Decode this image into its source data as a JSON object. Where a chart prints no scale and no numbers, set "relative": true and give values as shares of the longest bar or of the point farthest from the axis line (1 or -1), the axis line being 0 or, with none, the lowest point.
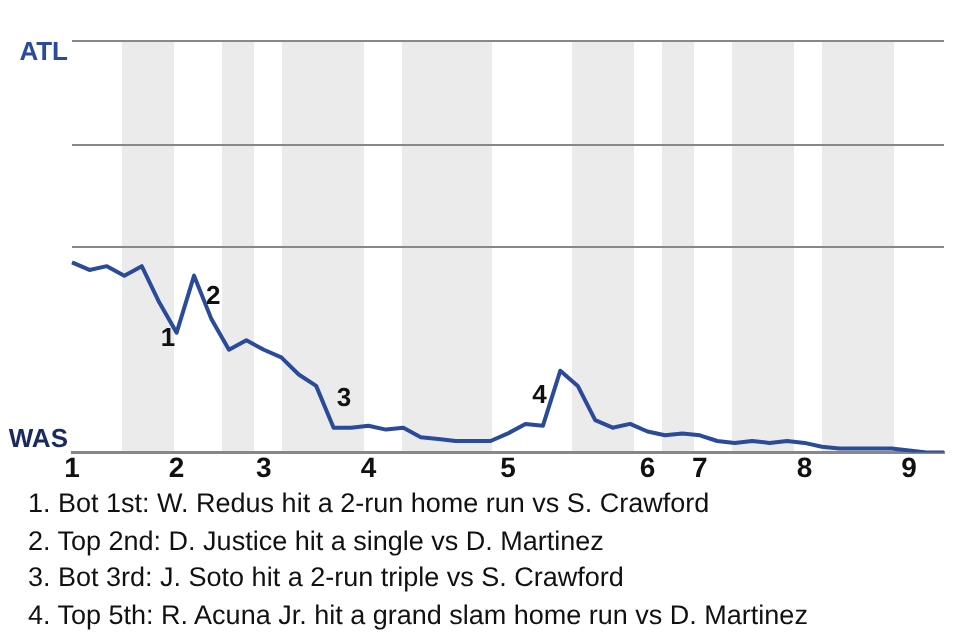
{
  "chart_data": {
    "type": "line",
    "relative": true,
    "categories": [
      "1",
      null,
      null,
      null,
      null,
      null,
      "2",
      null,
      null,
      null,
      null,
      "3",
      null,
      null,
      null,
      null,
      null,
      "4",
      null,
      null,
      null,
      null,
      null,
      null,
      null,
      "5",
      null,
      null,
      null,
      null,
      null,
      null,
      null,
      "6",
      null,
      null,
      "7",
      null,
      null,
      null,
      null,
      null,
      "8",
      null,
      null,
      null,
      null,
      null,
      "9",
      null,
      null
    ],
    "series": [
      {
        "color": "#2a4a9a",
        "values": [
          1,
          0.96,
          0.98,
          0.93,
          0.98,
          0.79,
          0.63,
          0.93,
          0.7,
          0.54,
          0.59,
          0.54,
          0.5,
          0.41,
          0.35,
          0.13,
          0.13,
          0.14,
          0.12,
          0.13,
          0.08,
          0.07,
          0.06,
          0.06,
          0.06,
          0.1,
          0.15,
          0.14,
          0.43,
          0.35,
          0.17,
          0.13,
          0.15,
          0.11,
          0.09,
          0.1,
          0.09,
          0.06,
          0.05,
          0.06,
          0.05,
          0.06,
          0.05,
          0.03,
          0.02,
          0.02,
          0.02,
          0.02,
          0.01,
          0,
          0
        ]
      }
    ],
    "legend": false,
    "marker": "none",
    "line_style": "solid",
    "annotations": [
      "ATL",
      "WAS",
      "1",
      "2",
      "3",
      "4",
      "1. Bot 1st: W. Redus hit a 2-run home run vs S. Crawford",
      "2. Top 2nd: D. Justice hit a single vs D. Martinez",
      "3. Bot 3rd: J. Soto hit a 2-run triple vs S. Crawford",
      "4. Top 5th: R. Acuna Jr. hit a grand slam home run vs D. Martinez"
    ]
  }
}
